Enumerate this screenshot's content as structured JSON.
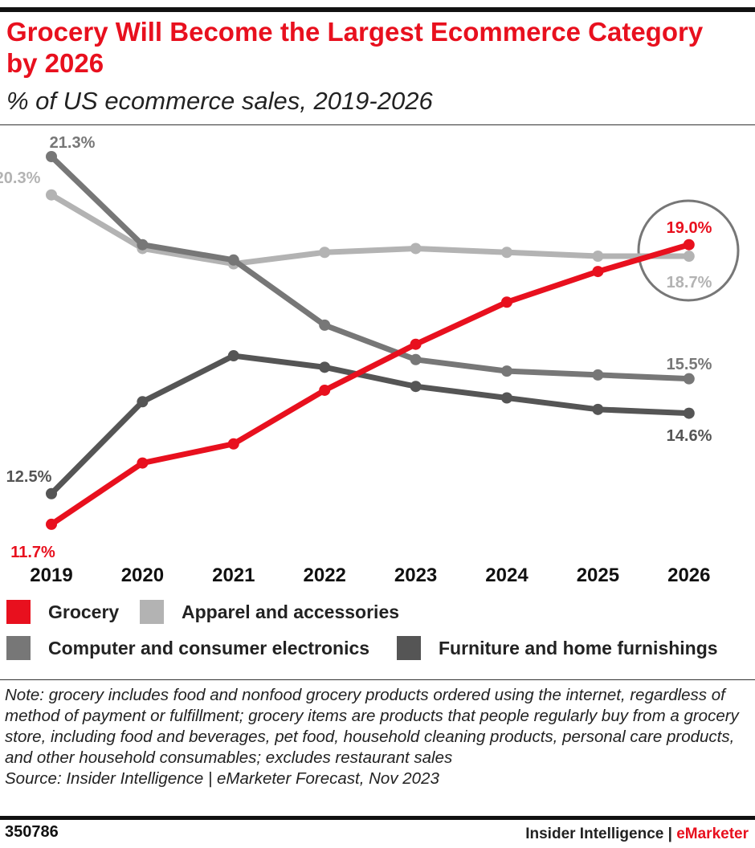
{
  "title": "Grocery Will Become the Largest Ecommerce Category by 2026",
  "subtitle": "% of US ecommerce sales, 2019-2026",
  "chart_data": {
    "type": "line",
    "categories": [
      "2019",
      "2020",
      "2021",
      "2022",
      "2023",
      "2024",
      "2025",
      "2026"
    ],
    "series": [
      {
        "name": "Grocery",
        "color": "#e8101e",
        "values": [
          11.7,
          13.3,
          13.8,
          15.2,
          16.4,
          17.5,
          18.3,
          19.0
        ],
        "labels": {
          "first": "11.7%",
          "last": "19.0%"
        }
      },
      {
        "name": "Apparel and accessories",
        "color": "#b3b3b3",
        "values": [
          20.3,
          18.9,
          18.5,
          18.8,
          18.9,
          18.8,
          18.7,
          18.7
        ],
        "labels": {
          "first": "20.3%",
          "last": "18.7%"
        }
      },
      {
        "name": "Computer and consumer electronics",
        "color": "#777777",
        "values": [
          21.3,
          19.0,
          18.6,
          16.9,
          16.0,
          15.7,
          15.6,
          15.5
        ],
        "labels": {
          "first": "21.3%",
          "last": "15.5%"
        }
      },
      {
        "name": "Furniture and home furnishings",
        "color": "#555555",
        "values": [
          12.5,
          14.9,
          16.1,
          15.8,
          15.3,
          15.0,
          14.7,
          14.6
        ],
        "labels": {
          "first": "12.5%",
          "last": "14.6%"
        }
      }
    ],
    "grid": false,
    "legend": "bottom",
    "annotation": "circle highlighting 2026 grocery vs apparel"
  },
  "note": "Note: grocery includes food and nonfood grocery products ordered using the internet, regardless of method of payment or fulfillment; grocery items are products that people regularly buy from a grocery store, including food and beverages, pet food, household cleaning products, personal care products, and other household consumables; excludes restaurant sales",
  "source": "Source: Insider Intelligence | eMarketer Forecast, Nov 2023",
  "footer": {
    "id": "350786",
    "brand_left": "Insider Intelligence | ",
    "brand_right": "eMarketer"
  }
}
